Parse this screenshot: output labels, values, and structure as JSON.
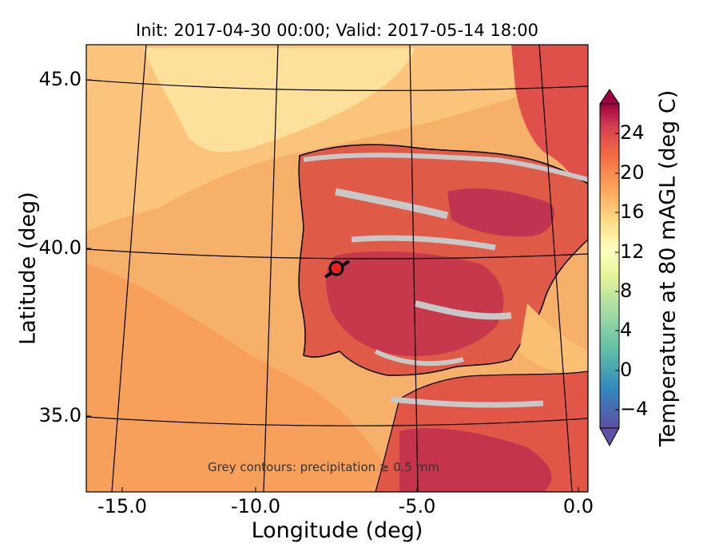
{
  "title": "Init: 2017-04-30 00:00; Valid: 2017-05-14 18:00",
  "x_axis": {
    "label": "Longitude (deg)",
    "ticks": [
      {
        "value": -15.0,
        "label": "-15.0"
      },
      {
        "value": -10.0,
        "label": "-10.0"
      },
      {
        "value": -5.0,
        "label": "-5.0"
      },
      {
        "value": 0.0,
        "label": "0.0"
      }
    ]
  },
  "y_axis": {
    "label": "Latitude (deg)",
    "ticks": [
      {
        "value": 45.0,
        "label": "45.0"
      },
      {
        "value": 40.0,
        "label": "40.0"
      },
      {
        "value": 35.0,
        "label": "35.0"
      }
    ]
  },
  "colorbar": {
    "label": "Temperature at 80 mAGL (deg C)",
    "tick_labels": [
      "24",
      "20",
      "16",
      "12",
      "8",
      "4",
      "0",
      "−4"
    ],
    "min": -6,
    "max": 27,
    "extend": "both",
    "colormap": "Spectral_r"
  },
  "annotation": "Grey contours: precipitation ≥ 0.5 mm",
  "marker": {
    "lon": -7.6,
    "lat": 39.3,
    "color": "#e8221f"
  },
  "colors": {
    "ocean_warm": "#f6b56a",
    "land_hot": "#d23f4c",
    "precip_contour": "#c8c8c8",
    "gridline": "#000000"
  }
}
